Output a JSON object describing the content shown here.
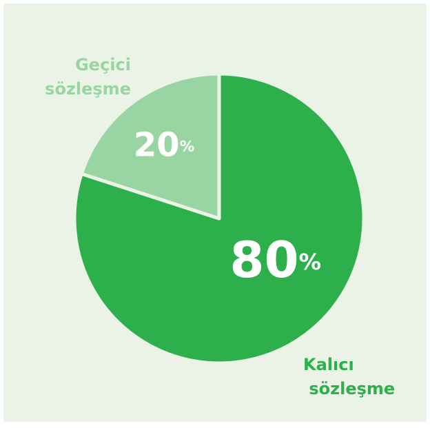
{
  "chart_data": {
    "type": "pie",
    "categories": [
      "Kalıcı sözleşme",
      "Geçici sözleşme"
    ],
    "values": [
      80,
      20
    ],
    "value_labels": [
      "80%",
      "20%"
    ],
    "colors": [
      "#2db04b",
      "#98d5a3"
    ]
  }
}
